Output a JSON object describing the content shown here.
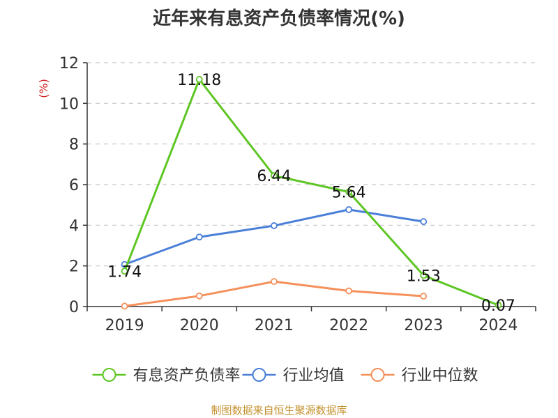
{
  "chart_data": {
    "type": "line",
    "title": "近年来有息资产负债率情况(%)",
    "ylabel": "(%)",
    "xlabel": "",
    "categories": [
      "2019",
      "2020",
      "2021",
      "2022",
      "2023",
      "2024"
    ],
    "ylim": [
      0,
      12
    ],
    "yticks": [
      0,
      2,
      4,
      6,
      8,
      10,
      12
    ],
    "grid": true,
    "legend_position": "bottom",
    "series": [
      {
        "name": "有息资产负债率",
        "color": "#5ec624",
        "values": [
          1.74,
          11.18,
          6.44,
          5.64,
          1.53,
          0.07
        ],
        "labels": [
          "1.74",
          "11.18",
          "6.44",
          "5.64",
          "1.53",
          "0.07"
        ]
      },
      {
        "name": "行业均值",
        "color": "#4a7fd8",
        "values": [
          2.07,
          3.42,
          3.98,
          4.77,
          4.18,
          null
        ]
      },
      {
        "name": "行业中位数",
        "color": "#f5905a",
        "values": [
          0.02,
          0.52,
          1.23,
          0.77,
          0.51,
          null
        ]
      }
    ]
  },
  "colors": {
    "ylabel": "#d42020",
    "source": "#c4922e"
  },
  "source": "制图数据来自恒生聚源数据库"
}
